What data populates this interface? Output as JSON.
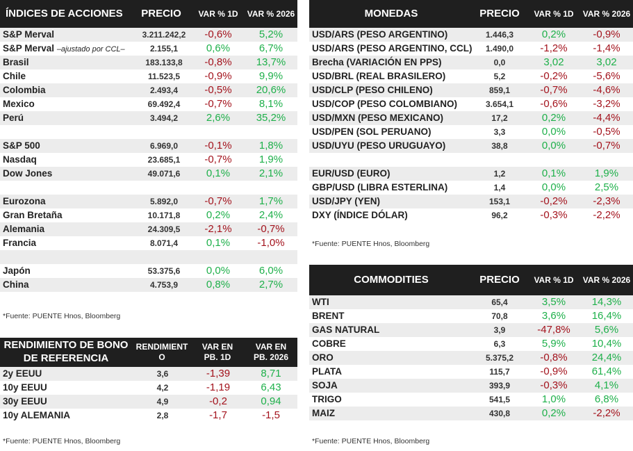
{
  "indices": {
    "header": {
      "name": "ÍNDICES DE ACCIONES",
      "price": "PRECIO",
      "d1": "VAR % 1D",
      "ytd": "VAR % 2026"
    },
    "groups": [
      [
        {
          "name": "S&P Merval",
          "note": "",
          "price": "3.211.242,2",
          "d1": "-0,6%",
          "ytd": "5,2%"
        },
        {
          "name": "S&P Merval",
          "note": "–ajustado por CCL–",
          "price": "2.155,1",
          "d1": "0,6%",
          "ytd": "6,7%"
        },
        {
          "name": "Brasil",
          "note": "",
          "price": "183.133,8",
          "d1": "-0,8%",
          "ytd": "13,7%"
        },
        {
          "name": "Chile",
          "note": "",
          "price": "11.523,5",
          "d1": "-0,9%",
          "ytd": "9,9%"
        },
        {
          "name": "Colombia",
          "note": "",
          "price": "2.493,4",
          "d1": "-0,5%",
          "ytd": "20,6%"
        },
        {
          "name": "Mexico",
          "note": "",
          "price": "69.492,4",
          "d1": "-0,7%",
          "ytd": "8,1%"
        },
        {
          "name": "Perú",
          "note": "",
          "price": "3.494,2",
          "d1": "2,6%",
          "ytd": "35,2%"
        }
      ],
      [
        {
          "name": "S&P 500",
          "note": "",
          "price": "6.969,0",
          "d1": "-0,1%",
          "ytd": "1,8%"
        },
        {
          "name": "Nasdaq",
          "note": "",
          "price": "23.685,1",
          "d1": "-0,7%",
          "ytd": "1,9%"
        },
        {
          "name": "Dow Jones",
          "note": "",
          "price": "49.071,6",
          "d1": "0,1%",
          "ytd": "2,1%"
        }
      ],
      [
        {
          "name": "Eurozona",
          "note": "",
          "price": "5.892,0",
          "d1": "-0,7%",
          "ytd": "1,7%"
        },
        {
          "name": "Gran Bretaña",
          "note": "",
          "price": "10.171,8",
          "d1": "0,2%",
          "ytd": "2,4%"
        },
        {
          "name": "Alemania",
          "note": "",
          "price": "24.309,5",
          "d1": "-2,1%",
          "ytd": "-0,7%"
        },
        {
          "name": "Francia",
          "note": "",
          "price": "8.071,4",
          "d1": "0,1%",
          "ytd": "-1,0%"
        }
      ],
      [
        {
          "name": "Japón",
          "note": "",
          "price": "53.375,6",
          "d1": "0,0%",
          "ytd": "6,0%"
        },
        {
          "name": "China",
          "note": "",
          "price": "4.753,9",
          "d1": "0,8%",
          "ytd": "2,7%"
        }
      ]
    ],
    "source": "*Fuente: PUENTE Hnos, Bloomberg"
  },
  "bonds": {
    "header": {
      "name": "RENDIMIENTO DE BONO DE REFERENCIA",
      "price": "RENDIMIENTO",
      "d1": "VAR EN PB. 1D",
      "ytd": "VAR EN PB. 2026"
    },
    "rows": [
      {
        "name": "2y EEUU",
        "price": "3,6",
        "d1": "-1,39",
        "ytd": "8,71"
      },
      {
        "name": "10y EEUU",
        "price": "4,2",
        "d1": "-1,19",
        "ytd": "6,43"
      },
      {
        "name": "30y EEUU",
        "price": "4,9",
        "d1": "-0,2",
        "ytd": "0,94"
      },
      {
        "name": "10y ALEMANIA",
        "price": "2,8",
        "d1": "-1,7",
        "ytd": "-1,5"
      }
    ],
    "source": "*Fuente: PUENTE Hnos, Bloomberg"
  },
  "currencies": {
    "header": {
      "name": "MONEDAS",
      "price": "PRECIO",
      "d1": "VAR % 1D",
      "ytd": "VAR % 2026"
    },
    "groups": [
      [
        {
          "name": "USD/ARS (PESO ARGENTINO)",
          "price": "1.446,3",
          "d1": "0,2%",
          "ytd": "-0,9%"
        },
        {
          "name": "USD/ARS (PESO ARGENTINO, CCL)",
          "price": "1.490,0",
          "d1": "-1,2%",
          "ytd": "-1,4%"
        },
        {
          "name": "Brecha (VARIACIÓN EN PPS)",
          "price": "0,0",
          "d1": "3,02",
          "ytd": "3,02"
        },
        {
          "name": "USD/BRL (REAL BRASILERO)",
          "price": "5,2",
          "d1": "-0,2%",
          "ytd": "-5,6%"
        },
        {
          "name": "USD/CLP (PESO CHILENO)",
          "price": "859,1",
          "d1": "-0,7%",
          "ytd": "-4,6%"
        },
        {
          "name": "USD/COP (PESO COLOMBIANO)",
          "price": "3.654,1",
          "d1": "-0,6%",
          "ytd": "-3,2%"
        },
        {
          "name": "USD/MXN (PESO MEXICANO)",
          "price": "17,2",
          "d1": "0,2%",
          "ytd": "-4,4%"
        },
        {
          "name": "USD/PEN (SOL PERUANO)",
          "price": "3,3",
          "d1": "0,0%",
          "ytd": "-0,5%"
        },
        {
          "name": "USD/UYU (PESO URUGUAYO)",
          "price": "38,8",
          "d1": "0,0%",
          "ytd": "-0,7%"
        }
      ],
      [
        {
          "name": "EUR/USD (EURO)",
          "price": "1,2",
          "d1": "0,1%",
          "ytd": "1,9%"
        },
        {
          "name": "GBP/USD (LIBRA ESTERLINA)",
          "price": "1,4",
          "d1": "0,0%",
          "ytd": "2,5%"
        },
        {
          "name": "USD/JPY (YEN)",
          "price": "153,1",
          "d1": "-0,2%",
          "ytd": "-2,3%"
        },
        {
          "name": "DXY (ÍNDICE DÓLAR)",
          "price": "96,2",
          "d1": "-0,3%",
          "ytd": "-2,2%"
        }
      ]
    ],
    "source": "*Fuente: PUENTE Hnos, Bloomberg"
  },
  "commodities": {
    "header": {
      "name": "COMMODITIES",
      "price": "PRECIO",
      "d1": "VAR % 1D",
      "ytd": "VAR % 2026"
    },
    "rows": [
      {
        "name": "WTI",
        "price": "65,4",
        "d1": "3,5%",
        "ytd": "14,3%"
      },
      {
        "name": "BRENT",
        "price": "70,8",
        "d1": "3,6%",
        "ytd": "16,4%"
      },
      {
        "name": "GAS NATURAL",
        "price": "3,9",
        "d1": "-47,8%",
        "ytd": "5,6%"
      },
      {
        "name": "COBRE",
        "price": "6,3",
        "d1": "5,9%",
        "ytd": "10,4%"
      },
      {
        "name": "ORO",
        "price": "5.375,2",
        "d1": "-0,8%",
        "ytd": "24,4%"
      },
      {
        "name": "PLATA",
        "price": "115,7",
        "d1": "-0,9%",
        "ytd": "61,4%"
      },
      {
        "name": "SOJA",
        "price": "393,9",
        "d1": "-0,3%",
        "ytd": "4,1%"
      },
      {
        "name": "TRIGO",
        "price": "541,5",
        "d1": "1,0%",
        "ytd": "6,8%"
      },
      {
        "name": "MAIZ",
        "price": "430,8",
        "d1": "0,2%",
        "ytd": "-2,2%"
      }
    ],
    "source": "*Fuente: PUENTE Hnos, Bloomberg"
  },
  "colors": {
    "positive": "#1eb04a",
    "negative": "#a3121c",
    "header_bg": "#1f1f1f",
    "row_alt": "#ececec"
  }
}
